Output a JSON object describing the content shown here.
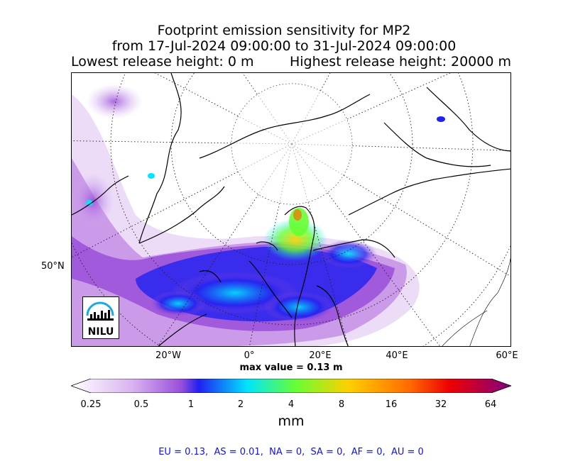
{
  "title": {
    "line1": "Footprint emission sensitivity for MP2",
    "line2": "from 17-Jul-2024 09:00:00 to 31-Jul-2024 09:00:00",
    "lowest": "Lowest release height: 0 m",
    "highest": "Highest release height: 20000 m"
  },
  "map": {
    "lat_label": "50°N",
    "lon_labels": [
      "20°W",
      "0°",
      "20°E",
      "40°E",
      "60°E"
    ],
    "logo_text": "NILU",
    "max_value": "max value = 0.13 m"
  },
  "colorbar": {
    "ticks": [
      "0.25",
      "0.5",
      "1",
      "2",
      "4",
      "8",
      "16",
      "32",
      "64"
    ],
    "unit": "mm",
    "colors": [
      "#ffffff",
      "#d9b3f0",
      "#9b4fd9",
      "#2020f0",
      "#00e5ff",
      "#66ff33",
      "#ffd000",
      "#ff6a00",
      "#ee0000",
      "#800080"
    ]
  },
  "footer": "EU = 0.13,  AS = 0.01,  NA = 0,  SA = 0,  AF = 0,  AU = 0"
}
